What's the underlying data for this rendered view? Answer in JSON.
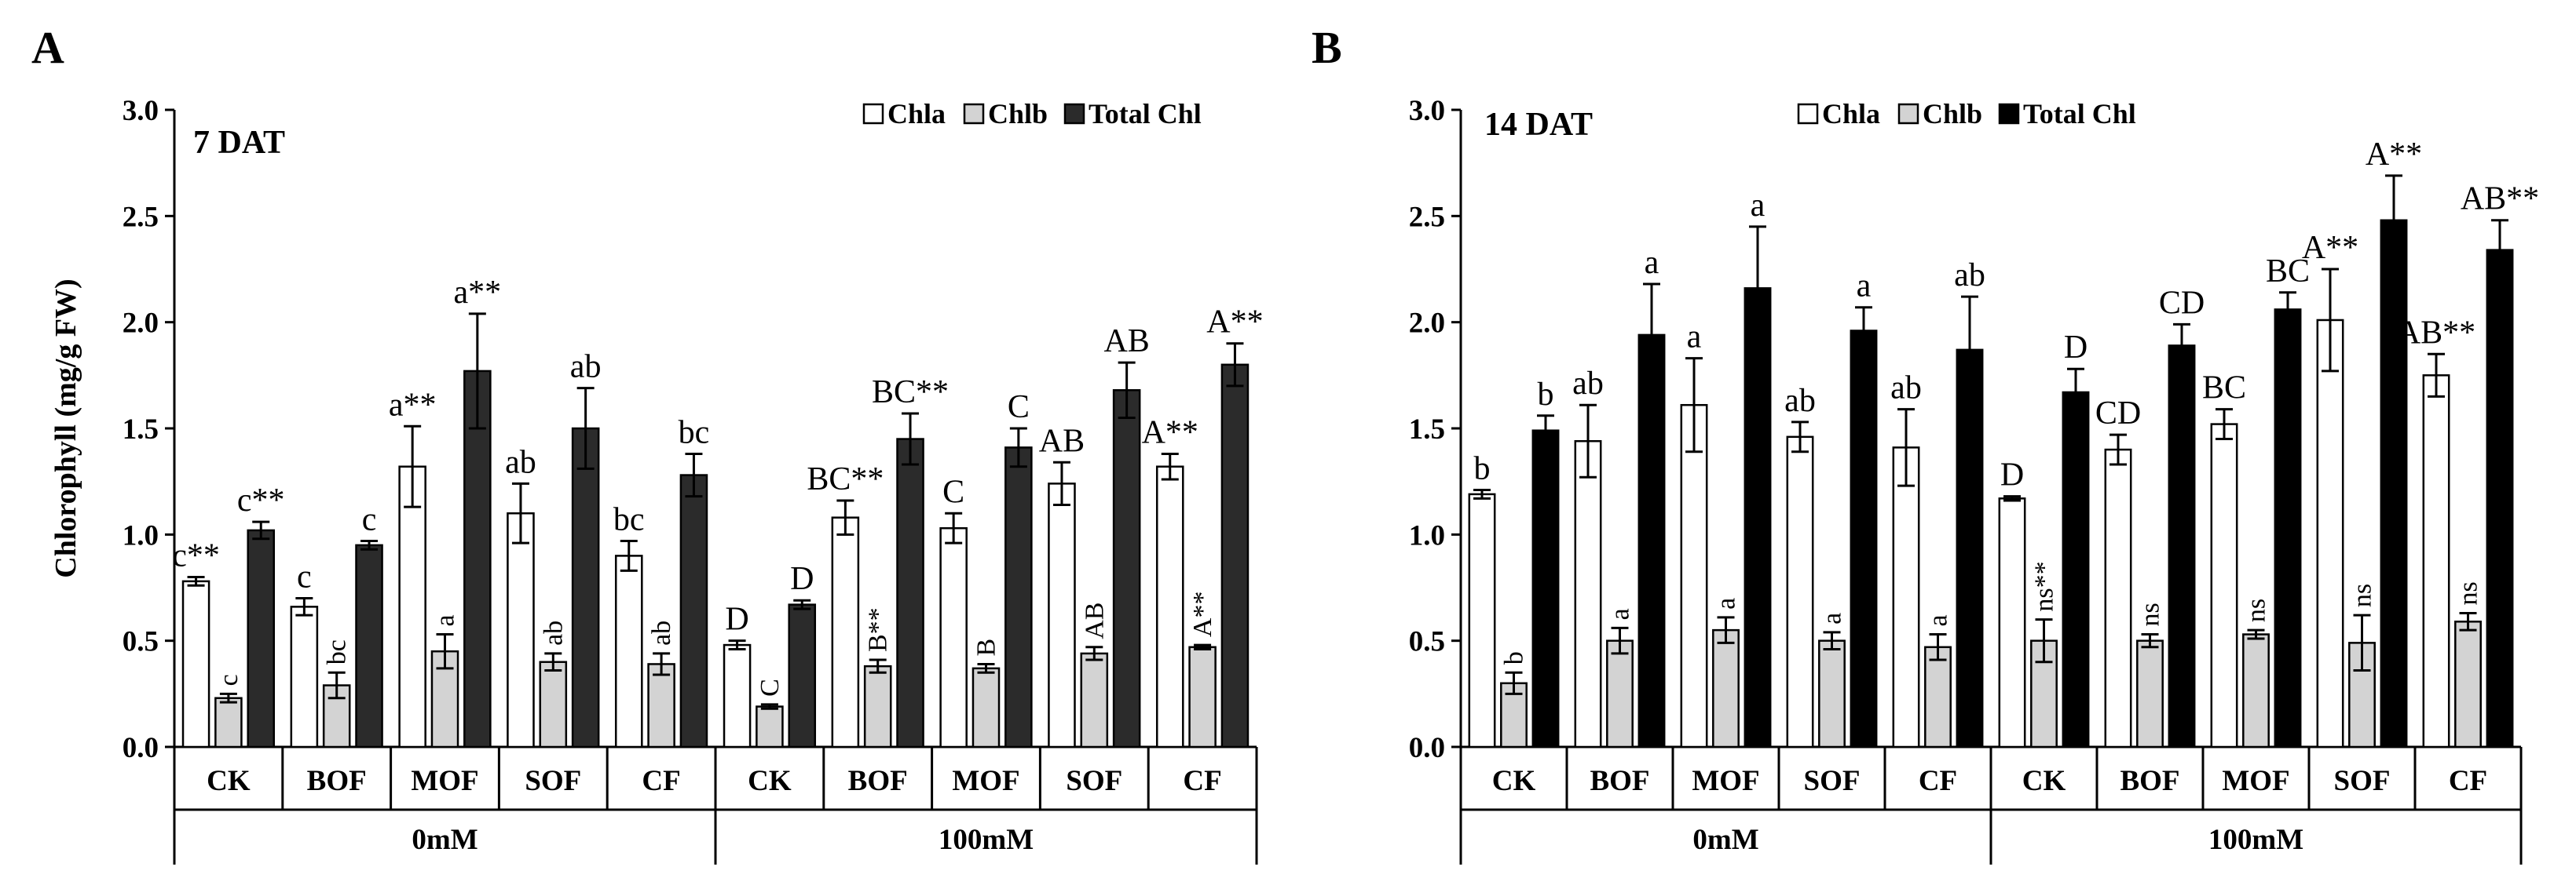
{
  "colors": {
    "chla": "#ffffff",
    "chlb": "#d3d3d3",
    "total_chl": "#000000",
    "total_chl_a": "#2b2b2b"
  },
  "series": [
    {
      "key": "chla",
      "name": "Chla"
    },
    {
      "key": "chlb",
      "name": "Chlb"
    },
    {
      "key": "total",
      "name": "Total Chl"
    }
  ],
  "chart_data": [
    {
      "panel": "A",
      "type": "bar",
      "title": "7 DAT",
      "ylabel": "Chlorophyll (mg/g FW)",
      "ylim": [
        0,
        3.0
      ],
      "yticks": [
        "0.0",
        "0.5",
        "1.0",
        "1.5",
        "2.0",
        "2.5",
        "3.0"
      ],
      "legend_position": "top-right",
      "categories": [
        "CK",
        "BOF",
        "MOF",
        "SOF",
        "CF",
        "CK",
        "BOF",
        "MOF",
        "SOF",
        "CF"
      ],
      "groups": [
        {
          "label": "0mM",
          "span": 5
        },
        {
          "label": "100mM",
          "span": 5
        }
      ],
      "series": [
        {
          "name": "Chla",
          "values": [
            0.78,
            0.66,
            1.32,
            1.1,
            0.9,
            0.48,
            1.08,
            1.03,
            1.24,
            1.32
          ],
          "errors": [
            0.02,
            0.04,
            0.19,
            0.14,
            0.07,
            0.02,
            0.08,
            0.07,
            0.1,
            0.06
          ],
          "labels": [
            "c**",
            "c",
            "a**",
            "ab",
            "bc",
            "D",
            "BC**",
            "C",
            "AB",
            "A**"
          ]
        },
        {
          "name": "Chlb",
          "values": [
            0.23,
            0.29,
            0.45,
            0.4,
            0.39,
            0.19,
            0.38,
            0.37,
            0.44,
            0.47
          ],
          "errors": [
            0.02,
            0.06,
            0.08,
            0.04,
            0.05,
            0.01,
            0.03,
            0.02,
            0.03,
            0.01
          ],
          "labels": [
            "c",
            "bc",
            "a",
            "ab",
            "ab",
            "C",
            "B**",
            "B",
            "AB",
            "A**"
          ]
        },
        {
          "name": "Total Chl",
          "values": [
            1.02,
            0.95,
            1.77,
            1.5,
            1.28,
            0.67,
            1.45,
            1.41,
            1.68,
            1.8
          ],
          "errors": [
            0.04,
            0.02,
            0.27,
            0.19,
            0.1,
            0.02,
            0.12,
            0.09,
            0.13,
            0.1
          ],
          "labels": [
            "c**",
            "c",
            "a**",
            "ab",
            "bc",
            "D",
            "BC**",
            "C",
            "AB",
            "A**"
          ]
        }
      ]
    },
    {
      "panel": "B",
      "type": "bar",
      "title": "14 DAT",
      "ylabel": "",
      "ylim": [
        0,
        3.0
      ],
      "yticks": [
        "0.0",
        "0.5",
        "1.0",
        "1.5",
        "2.0",
        "2.5",
        "3.0"
      ],
      "legend_position": "top-right",
      "categories": [
        "CK",
        "BOF",
        "MOF",
        "SOF",
        "CF",
        "CK",
        "BOF",
        "MOF",
        "SOF",
        "CF"
      ],
      "groups": [
        {
          "label": "0mM",
          "span": 5
        },
        {
          "label": "100mM",
          "span": 5
        }
      ],
      "series": [
        {
          "name": "Chla",
          "values": [
            1.19,
            1.44,
            1.61,
            1.46,
            1.41,
            1.17,
            1.4,
            1.52,
            2.01,
            1.75
          ],
          "errors": [
            0.02,
            0.17,
            0.22,
            0.07,
            0.18,
            0.01,
            0.07,
            0.07,
            0.24,
            0.1
          ],
          "labels": [
            "b",
            "ab",
            "a",
            "ab",
            "ab",
            "D",
            "CD",
            "BC",
            "A**",
            "AB**"
          ]
        },
        {
          "name": "Chlb",
          "values": [
            0.3,
            0.5,
            0.55,
            0.5,
            0.47,
            0.5,
            0.5,
            0.53,
            0.49,
            0.59
          ],
          "errors": [
            0.05,
            0.06,
            0.06,
            0.04,
            0.06,
            0.1,
            0.03,
            0.02,
            0.13,
            0.04
          ],
          "labels": [
            "b",
            "a",
            "a",
            "a",
            "a",
            "ns**",
            "ns",
            "ns",
            "ns",
            "ns"
          ]
        },
        {
          "name": "Total Chl",
          "values": [
            1.49,
            1.94,
            2.16,
            1.96,
            1.87,
            1.67,
            1.89,
            2.06,
            2.48,
            2.34
          ],
          "errors": [
            0.07,
            0.24,
            0.29,
            0.11,
            0.25,
            0.11,
            0.1,
            0.08,
            0.21,
            0.14
          ],
          "labels": [
            "b",
            "a",
            "a",
            "a",
            "ab",
            "D",
            "CD",
            "BC",
            "A**",
            "AB**"
          ]
        }
      ]
    }
  ]
}
